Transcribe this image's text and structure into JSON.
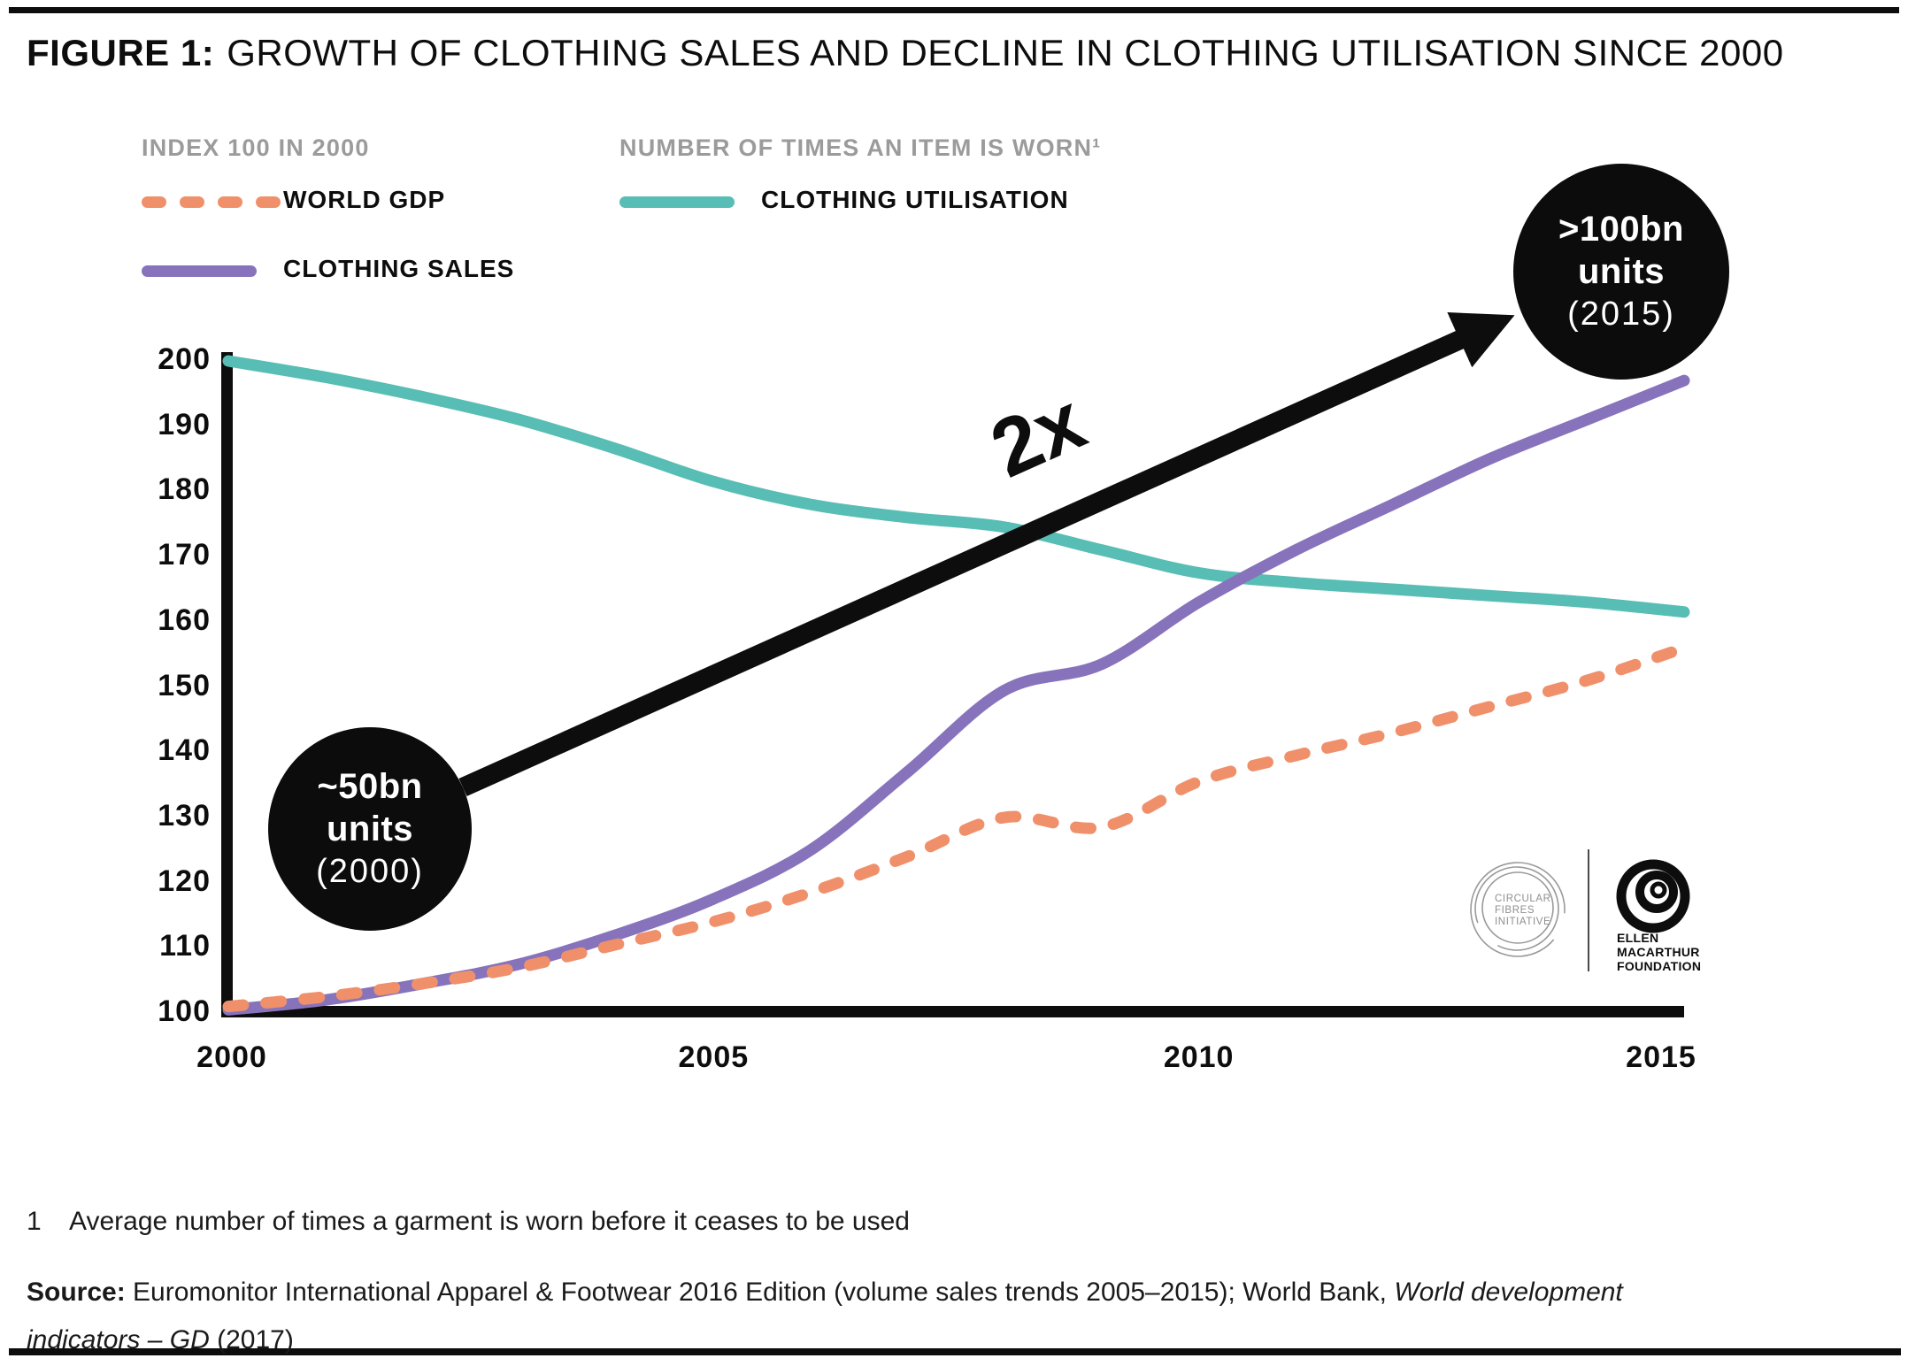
{
  "header": {
    "figure_label": "FIGURE 1:",
    "title": "GROWTH OF CLOTHING SALES AND DECLINE IN CLOTHING UTILISATION SINCE 2000"
  },
  "legend": {
    "group1_title": "INDEX 100 IN 2000",
    "group2_title": "NUMBER OF TIMES AN ITEM IS WORN¹",
    "items": [
      {
        "label": "WORLD GDP",
        "color": "#F0906B",
        "style": "dashed"
      },
      {
        "label": "CLOTHING SALES",
        "color": "#8773BB",
        "style": "solid"
      },
      {
        "label": "CLOTHING UTILISATION",
        "color": "#58BDB4",
        "style": "solid"
      }
    ]
  },
  "annotations": {
    "multiplier": "2x",
    "start_circle": {
      "lines": [
        "~50bn",
        "units",
        "(2000)"
      ]
    },
    "end_circle": {
      "lines": [
        ">100bn",
        "units",
        "(2015)"
      ]
    }
  },
  "chart_data": {
    "type": "line",
    "x": [
      2000,
      2001,
      2002,
      2003,
      2004,
      2005,
      2006,
      2007,
      2008,
      2009,
      2010,
      2011,
      2012,
      2013,
      2014,
      2015
    ],
    "series": [
      {
        "name": "CLOTHING UTILISATION",
        "color": "#58BDB4",
        "dashed": false,
        "values": [
          200,
          197.5,
          194.5,
          191,
          186.5,
          181.5,
          178,
          176,
          174.5,
          171,
          167.5,
          166,
          165,
          164,
          163,
          161.5
        ]
      },
      {
        "name": "CLOTHING SALES",
        "color": "#8773BB",
        "dashed": false,
        "values": [
          100.5,
          102,
          104.5,
          107.5,
          112,
          117.5,
          125,
          137,
          149.5,
          153.5,
          163,
          171,
          178,
          185,
          191,
          197
        ]
      },
      {
        "name": "WORLD GDP",
        "color": "#F0906B",
        "dashed": true,
        "values": [
          101,
          102.5,
          104.5,
          107,
          110.5,
          114,
          118.5,
          124,
          130,
          128.5,
          135.5,
          139.5,
          143,
          147,
          151,
          156
        ]
      }
    ],
    "title": "GROWTH OF CLOTHING SALES AND DECLINE IN CLOTHING UTILISATION SINCE 2000",
    "xlabel": "",
    "ylabel": "INDEX 100 IN 2000",
    "ylim": [
      100,
      200
    ],
    "y_ticks": [
      200,
      190,
      180,
      170,
      160,
      150,
      140,
      130,
      120,
      110,
      100
    ],
    "x_ticks": [
      2000,
      2005,
      2010,
      2015
    ],
    "grid": false,
    "legend_position": "top-left",
    "annotation": "2x arrow from ~50bn units (2000) to >100bn units (2015)"
  },
  "logos": {
    "cfi": {
      "lines": [
        "CIRCULAR",
        "FIBRES",
        "INITIATIVE"
      ]
    },
    "emf": {
      "lines": [
        "ELLEN",
        "MACARTHUR",
        "FOUNDATION"
      ]
    }
  },
  "footnote": {
    "number": "1",
    "text": "Average number of times a garment is worn before it ceases to be used"
  },
  "source": {
    "label": "Source:",
    "text1": " Euromonitor International Apparel & Footwear 2016 Edition (volume sales trends 2005–2015); World Bank, ",
    "italic": "World development indicators – GD",
    "text2": " (2017)"
  },
  "colors": {
    "accent_black": "#0d0d0d",
    "legend_gray": "#9b9b9b",
    "world_gdp": "#F0906B",
    "clothing_sales": "#8773BB",
    "clothing_utilisation": "#58BDB4"
  }
}
